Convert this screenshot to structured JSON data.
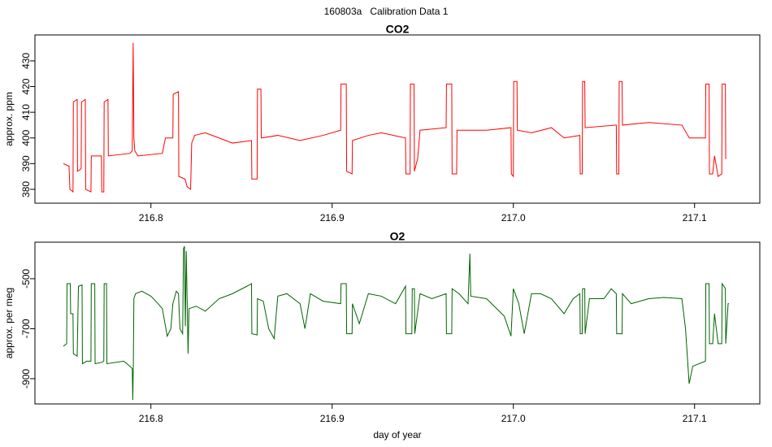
{
  "title": "160803a   Calibration Data 1",
  "chart_data": [
    {
      "type": "line",
      "title": "CO2",
      "ylabel": "approx. ppm",
      "color": "#ff0000",
      "xlim": [
        216.736,
        217.136
      ],
      "xticks": [
        216.8,
        216.9,
        {
          "value": 217,
          "label": "217.0"
        },
        217.1
      ],
      "ylim": [
        374.6,
        440.1
      ],
      "yticks": [
        380,
        390,
        400,
        410,
        420,
        430
      ],
      "x": [
        216.7517,
        216.7548,
        216.7553,
        216.757,
        216.7572,
        216.7593,
        216.7595,
        216.7615,
        216.7617,
        216.7638,
        216.764,
        216.7669,
        216.7671,
        216.7727,
        216.7729,
        216.774,
        216.7742,
        216.7763,
        216.7765,
        216.7884,
        216.7897,
        216.7902,
        216.7906,
        216.7911,
        216.7928,
        216.8063,
        216.808,
        216.8121,
        216.8123,
        216.8152,
        216.8154,
        216.8188,
        216.82,
        216.8219,
        216.8225,
        216.8242,
        216.83,
        216.8376,
        216.845,
        216.8555,
        216.8557,
        216.8586,
        216.8588,
        216.8607,
        216.8609,
        216.87,
        216.8823,
        216.895,
        216.9047,
        216.9049,
        216.9078,
        216.908,
        216.911,
        216.9112,
        216.92,
        216.9271,
        216.9405,
        216.9407,
        216.943,
        216.9432,
        216.9452,
        216.9454,
        216.9472,
        216.9485,
        216.9629,
        216.9631,
        216.966,
        216.9662,
        216.9687,
        216.9689,
        216.9852,
        216.9987,
        216.9989,
        217.0,
        217.0002,
        217.002,
        217.0022,
        217.01,
        217.021,
        217.028,
        217.0367,
        217.0369,
        217.038,
        217.0382,
        217.0394,
        217.0396,
        217.0568,
        217.057,
        217.0582,
        217.0584,
        217.06,
        217.0602,
        217.0747,
        217.093,
        217.0971,
        217.106,
        217.1062,
        217.108,
        217.1082,
        217.11,
        217.111,
        217.113,
        217.115,
        217.1152,
        217.117,
        217.1172,
        217.1175
      ],
      "values": [
        390,
        389,
        380,
        379,
        414,
        415,
        387,
        388,
        414,
        415,
        380,
        379,
        393,
        393,
        379,
        379,
        414,
        415,
        393,
        394,
        395,
        437,
        400,
        395,
        393,
        394,
        400,
        400,
        417,
        418,
        385,
        384,
        381,
        380,
        398,
        401,
        402,
        400,
        398,
        399,
        384,
        384,
        419,
        419,
        400,
        401,
        399,
        401,
        403,
        421,
        421,
        387,
        386,
        399,
        401,
        402,
        400,
        386,
        386,
        421,
        421,
        387,
        392,
        403,
        404,
        421,
        421,
        386,
        386,
        403,
        403,
        404,
        386,
        385,
        422,
        422,
        403,
        402,
        404,
        400,
        401,
        386,
        386,
        422,
        422,
        404,
        405,
        386,
        386,
        422,
        422,
        405,
        406,
        405,
        400,
        400,
        421,
        421,
        386,
        386,
        393,
        385,
        386,
        421,
        421,
        392,
        392
      ]
    },
    {
      "type": "line",
      "title": "O2",
      "ylabel": "approx. per meg",
      "xlabel": "day of year",
      "color": "#006400",
      "xlim": [
        216.736,
        217.136
      ],
      "xticks": [
        216.8,
        216.9,
        {
          "value": 217,
          "label": "217.0"
        },
        217.1
      ],
      "ylim": [
        -1001,
        -354
      ],
      "yticks": [
        -500,
        -700,
        -900
      ],
      "x": [
        216.7517,
        216.7535,
        216.7537,
        216.7555,
        216.7557,
        216.757,
        216.7572,
        216.7593,
        216.76,
        216.762,
        216.7622,
        216.7646,
        216.7669,
        216.7671,
        216.769,
        216.7692,
        216.7727,
        216.774,
        216.7742,
        216.7755,
        216.7757,
        216.785,
        216.7884,
        216.7897,
        216.79,
        216.7903,
        216.7906,
        216.7915,
        216.795,
        216.8,
        216.804,
        216.8063,
        216.809,
        216.811,
        216.8121,
        216.814,
        216.8152,
        216.816,
        216.8175,
        216.818,
        216.8185,
        216.819,
        216.8195,
        216.8205,
        216.821,
        216.825,
        216.83,
        216.8376,
        216.845,
        216.853,
        216.8555,
        216.8557,
        216.8586,
        216.8588,
        216.862,
        216.865,
        216.868,
        216.87,
        216.875,
        216.8823,
        216.885,
        216.888,
        216.895,
        216.9047,
        216.9049,
        216.9078,
        216.908,
        216.911,
        216.9112,
        216.915,
        216.92,
        216.9271,
        216.935,
        216.9405,
        216.9407,
        216.944,
        216.9442,
        216.9454,
        216.9456,
        216.9485,
        216.955,
        216.9629,
        216.9631,
        216.966,
        216.9662,
        216.97,
        216.975,
        216.976,
        216.9765,
        216.9852,
        216.995,
        216.9987,
        217.0,
        217.003,
        217.006,
        217.01,
        217.015,
        217.021,
        217.028,
        217.033,
        217.0367,
        217.0369,
        217.038,
        217.0382,
        217.0394,
        217.0396,
        217.042,
        217.05,
        217.054,
        217.0568,
        217.057,
        217.06,
        217.0602,
        217.065,
        217.0747,
        217.083,
        217.093,
        217.095,
        217.097,
        217.099,
        217.106,
        217.1062,
        217.108,
        217.1082,
        217.11,
        217.111,
        217.113,
        217.115,
        217.1152,
        217.117,
        217.1172,
        217.1185,
        217.119
      ],
      "values": [
        -770,
        -760,
        -520,
        -520,
        -640,
        -640,
        -800,
        -810,
        -530,
        -525,
        -840,
        -830,
        -830,
        -520,
        -520,
        -840,
        -835,
        -830,
        -520,
        -520,
        -840,
        -830,
        -850,
        -860,
        -985,
        -840,
        -580,
        -560,
        -550,
        -570,
        -600,
        -620,
        -730,
        -700,
        -600,
        -550,
        -560,
        -700,
        -720,
        -380,
        -370,
        -690,
        -390,
        -800,
        -620,
        -610,
        -630,
        -580,
        -560,
        -530,
        -520,
        -720,
        -725,
        -580,
        -590,
        -700,
        -740,
        -570,
        -560,
        -600,
        -700,
        -560,
        -590,
        -600,
        -520,
        -520,
        -720,
        -720,
        -600,
        -680,
        -560,
        -570,
        -600,
        -530,
        -720,
        -720,
        -540,
        -540,
        -720,
        -560,
        -580,
        -560,
        -720,
        -720,
        -540,
        -560,
        -600,
        -400,
        -570,
        -580,
        -650,
        -730,
        -540,
        -600,
        -720,
        -560,
        -560,
        -580,
        -640,
        -580,
        -560,
        -720,
        -720,
        -540,
        -540,
        -720,
        -580,
        -580,
        -540,
        -560,
        -720,
        -720,
        -560,
        -600,
        -580,
        -575,
        -580,
        -700,
        -920,
        -850,
        -830,
        -520,
        -520,
        -760,
        -760,
        -640,
        -760,
        -760,
        -520,
        -540,
        -760,
        -600,
        -600
      ]
    }
  ]
}
